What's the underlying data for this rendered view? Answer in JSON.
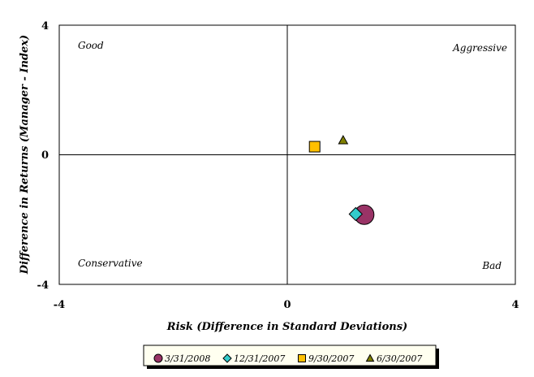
{
  "chart_data": {
    "type": "scatter",
    "xlabel": "Risk (Difference in Standard Deviations)",
    "ylabel": "Difference in Returns (Manager - Index)",
    "xlim": [
      -4,
      4
    ],
    "ylim": [
      -4,
      4
    ],
    "x_ticks": [
      "-4",
      "0",
      "4"
    ],
    "y_ticks": [
      "4",
      "0",
      "-4"
    ],
    "grid": false,
    "legend_position": "bottom",
    "quadrant_labels": {
      "top_left": "Good",
      "top_right": "Aggressive",
      "bottom_left": "Conservative",
      "bottom_right": "Bad"
    },
    "series": [
      {
        "name": "3/31/2008",
        "marker": "circle",
        "color": "#993366",
        "x": 1.35,
        "y": -1.85
      },
      {
        "name": "12/31/2007",
        "marker": "diamond",
        "color": "#33CCCC",
        "x": 1.2,
        "y": -1.83
      },
      {
        "name": "9/30/2007",
        "marker": "square",
        "color": "#FFC000",
        "x": 0.48,
        "y": 0.25
      },
      {
        "name": "6/30/2007",
        "marker": "triangle",
        "color": "#808000",
        "x": 0.98,
        "y": 0.45
      }
    ]
  }
}
